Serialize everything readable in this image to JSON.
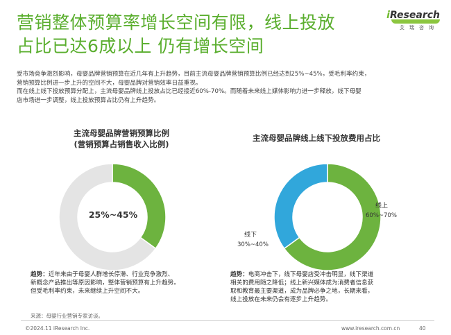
{
  "title_line1": "营销整体预算率增长空间有限，线上投放",
  "title_line2": "占比已达6成以上 仍有增长空间",
  "logo": {
    "brand_i": "i",
    "brand_rest": "Research",
    "sub": "艾瑞咨询"
  },
  "intro": [
    "受市场竞争激烈影响，母婴品牌营销预算在近几年有上升趋势，目前主流母婴品牌营销预算比例已经达到25%~45%，受毛利率约束，",
    "营销预算比例进一步上升的空间不大，母婴品牌对营销效率日益重视。",
    "而在线上线下投放预算分配上，主流母婴品牌线上投放占比已经接近60%-70%。而随着未来线上媒体影响力进一步释放，线下母婴",
    "店市场进一步调整，线上投放预算占比仍有上升趋势。"
  ],
  "colors": {
    "green": "#6db33f",
    "grey": "#e4e4e4",
    "blue": "#31a7db",
    "title_green": "#5aae2e"
  },
  "chart_data": [
    {
      "type": "pie",
      "title": "主流母婴品牌营销预算比例\n(营销预算占销售收入比例)",
      "center_label": "25%~45%",
      "slices": [
        {
          "name": "",
          "value": 35,
          "color": "#6db33f"
        },
        {
          "name": "",
          "value": 65,
          "color": "#e4e4e4"
        }
      ]
    },
    {
      "type": "pie",
      "title": "主流母婴品牌线上线下投放费用占比",
      "slices": [
        {
          "name": "线上",
          "label": "60%~70%",
          "value": 65,
          "color": "#6db33f"
        },
        {
          "name": "线下",
          "label": "30%~40%",
          "value": 35,
          "color": "#31a7db"
        }
      ]
    }
  ],
  "trend1": {
    "label": "趋势：",
    "line1": "近年来由于母婴人群增长停滞、行业竞争激烈、",
    "line2": "新概念产品推出等原因影响，整体营销预算有上升趋势。",
    "line3": "但受毛利率约束，未来继续上升空间不大。"
  },
  "trend2": {
    "label": "趋势：",
    "line1": "电商冲击下，线下母婴店受冲击明显，线下渠道",
    "line2": "相关的费用随之降低；线上新兴媒体成为消费者信息获",
    "line3": "取和教育最主要渠道，成为品牌必争之地，长期来看，",
    "line4": "线上投放在未来仍会有逐步上升趋势。"
  },
  "source": "来源：母婴行业营销专家访谈。",
  "footer_left": "©2024.11 iResearch Inc.",
  "footer_right": "www.iresearch.com.cn",
  "page_number": "40"
}
